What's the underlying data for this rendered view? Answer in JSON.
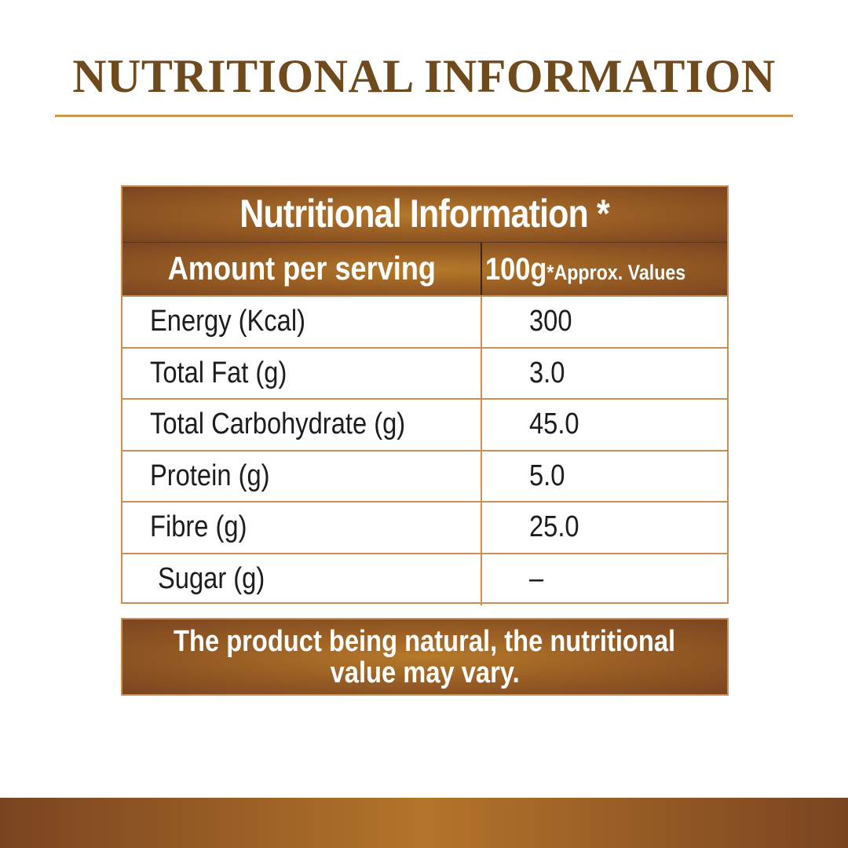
{
  "page": {
    "title": "NUTRITIONAL INFORMATION"
  },
  "table": {
    "header": "Nutritional Information *",
    "column_label": "Amount per serving",
    "serving_quantity": "100g",
    "serving_note": "*Approx. Values",
    "rows": [
      {
        "nutrient": "Energy (Kcal)",
        "value": "300"
      },
      {
        "nutrient": "Total Fat (g)",
        "value": "3.0"
      },
      {
        "nutrient": "Total Carbohydrate (g)",
        "value": "45.0"
      },
      {
        "nutrient": "Protein (g)",
        "value": "5.0"
      },
      {
        "nutrient": "Fibre (g)",
        "value": "25.0"
      },
      {
        "nutrient": "Sugar (g)",
        "value": "–"
      }
    ]
  },
  "disclaimer": {
    "line1": "The product being natural, the nutritional",
    "line2": "value may vary."
  },
  "colors": {
    "title": "#6e4a1d",
    "accent_rule": "#c99a4e",
    "brown_dark": "#7a4420",
    "brown_light": "#b67a2a",
    "table_border": "#c98f56"
  }
}
